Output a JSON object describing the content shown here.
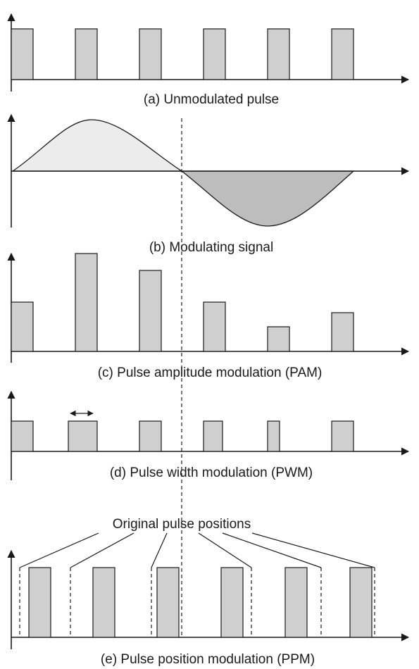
{
  "panels": {
    "a": {
      "caption": "(a) Unmodulated pulse"
    },
    "b": {
      "caption": "(b) Modulating  signal"
    },
    "c": {
      "caption": "(c) Pulse amplitude modulation  (PAM)"
    },
    "d": {
      "caption": "(d) Pulse width modulation (PWM)"
    },
    "e": {
      "caption": "(e) Pulse position modulation (PPM)",
      "annotation": "Original pulse positions"
    }
  },
  "colors": {
    "pulse_fill": "#cfcfcf",
    "positive_lobe_fill": "#ececec",
    "negative_lobe_fill": "#bdbdbd",
    "stroke": "#1a1a1a"
  }
}
